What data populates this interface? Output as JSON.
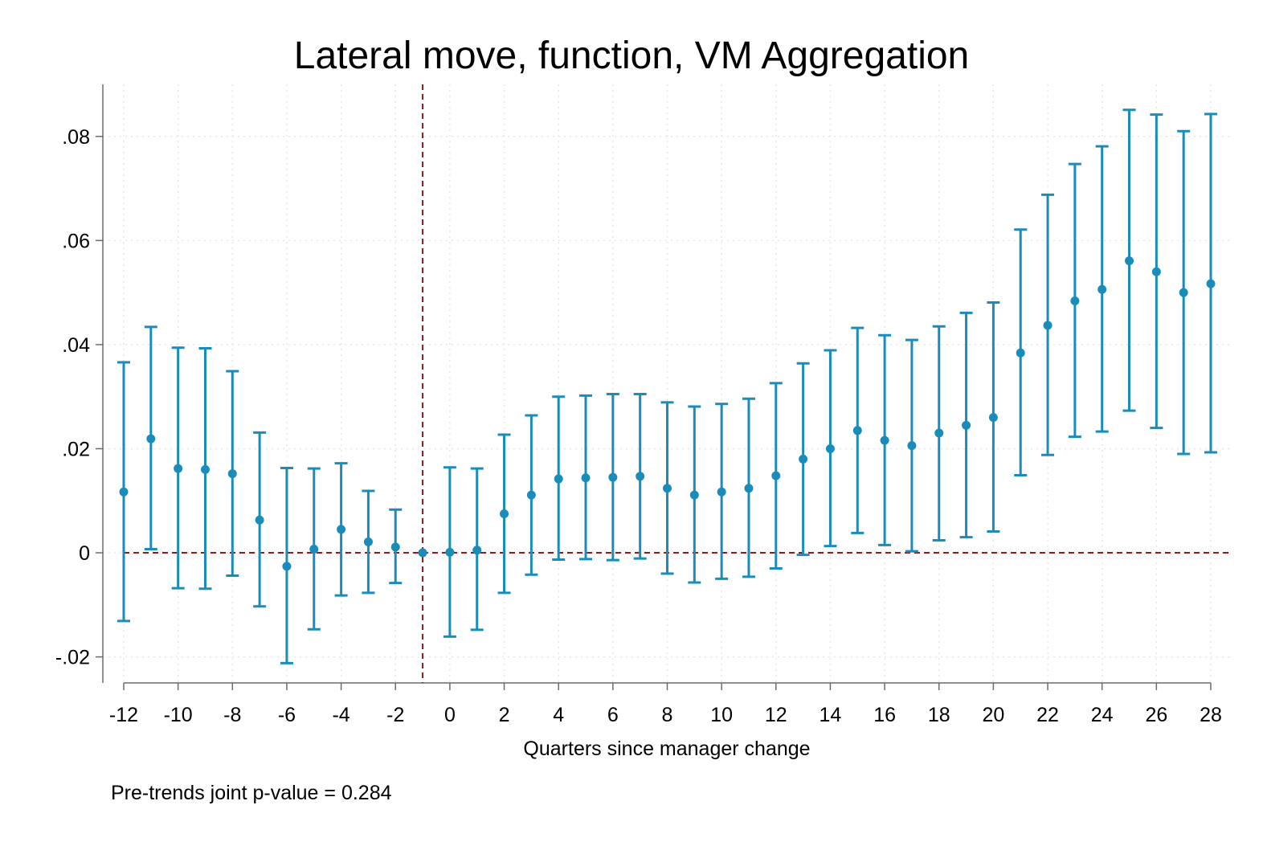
{
  "chart_data": {
    "type": "scatter",
    "title": "Lateral move, function, VM Aggregation",
    "xlabel": "Quarters since manager change",
    "ylabel": "",
    "note": "Pre-trends joint p-value = 0.284",
    "xlim": [
      -12,
      28
    ],
    "ylim": [
      -0.025,
      0.09
    ],
    "x_ticks": [
      -12,
      -10,
      -8,
      -6,
      -4,
      -2,
      0,
      2,
      4,
      6,
      8,
      10,
      12,
      14,
      16,
      18,
      20,
      22,
      24,
      26,
      28
    ],
    "x_tick_labels": [
      "-12",
      "-10",
      "-8",
      "-6",
      "-4",
      "-2",
      "0",
      "2",
      "4",
      "6",
      "8",
      "10",
      "12",
      "14",
      "16",
      "18",
      "20",
      "22",
      "24",
      "26",
      "28"
    ],
    "y_ticks": [
      -0.02,
      0,
      0.02,
      0.04,
      0.06,
      0.08
    ],
    "y_tick_labels": [
      "-.02",
      "0",
      ".02",
      ".04",
      ".06",
      ".08"
    ],
    "grid": true,
    "reference_lines": {
      "vertical_x": -1,
      "horizontal_y": 0,
      "color": "#8b1a1a"
    },
    "colors": {
      "series": "#1a8cba"
    },
    "series": [
      {
        "x": [
          -12,
          -11,
          -10,
          -9,
          -8,
          -7,
          -6,
          -5,
          -4,
          -3,
          -2,
          -1,
          0,
          1,
          2,
          3,
          4,
          5,
          6,
          7,
          8,
          9,
          10,
          11,
          12,
          13,
          14,
          15,
          16,
          17,
          18,
          19,
          20,
          21,
          22,
          23,
          24,
          25,
          26,
          27,
          28
        ],
        "estimate": [
          0.0117,
          0.0219,
          0.0162,
          0.016,
          0.0152,
          0.0063,
          -0.0026,
          0.0007,
          0.0045,
          0.0021,
          0.0011,
          0.0,
          0.0001,
          0.0005,
          0.0075,
          0.0111,
          0.0142,
          0.0144,
          0.0145,
          0.0147,
          0.0124,
          0.0111,
          0.0117,
          0.0124,
          0.0148,
          0.018,
          0.02,
          0.0235,
          0.0216,
          0.0206,
          0.023,
          0.0245,
          0.026,
          0.0384,
          0.0437,
          0.0484,
          0.0506,
          0.0561,
          0.054,
          0.05,
          0.0517
        ],
        "lower": [
          -0.0131,
          0.0007,
          -0.0068,
          -0.0069,
          -0.0044,
          -0.0103,
          -0.0212,
          -0.0147,
          -0.0082,
          -0.0077,
          -0.0058,
          null,
          -0.0161,
          -0.0148,
          -0.0077,
          -0.0042,
          -0.0013,
          -0.0012,
          -0.0014,
          -0.0011,
          -0.004,
          -0.0057,
          -0.005,
          -0.0046,
          -0.003,
          -0.0004,
          0.0013,
          0.0038,
          0.0015,
          0.0003,
          0.0024,
          0.003,
          0.0041,
          0.0149,
          0.0188,
          0.0223,
          0.0233,
          0.0273,
          0.024,
          0.019,
          0.0193
        ],
        "upper": [
          0.0366,
          0.0434,
          0.0394,
          0.0393,
          0.0349,
          0.0231,
          0.0163,
          0.0162,
          0.0172,
          0.0119,
          0.0083,
          null,
          0.0164,
          0.0162,
          0.0227,
          0.0264,
          0.03,
          0.0302,
          0.0305,
          0.0305,
          0.0289,
          0.0281,
          0.0286,
          0.0296,
          0.0326,
          0.0364,
          0.0389,
          0.0432,
          0.0418,
          0.0409,
          0.0435,
          0.0461,
          0.0481,
          0.0621,
          0.0688,
          0.0747,
          0.0781,
          0.0851,
          0.0842,
          0.081,
          0.0843
        ]
      }
    ]
  }
}
